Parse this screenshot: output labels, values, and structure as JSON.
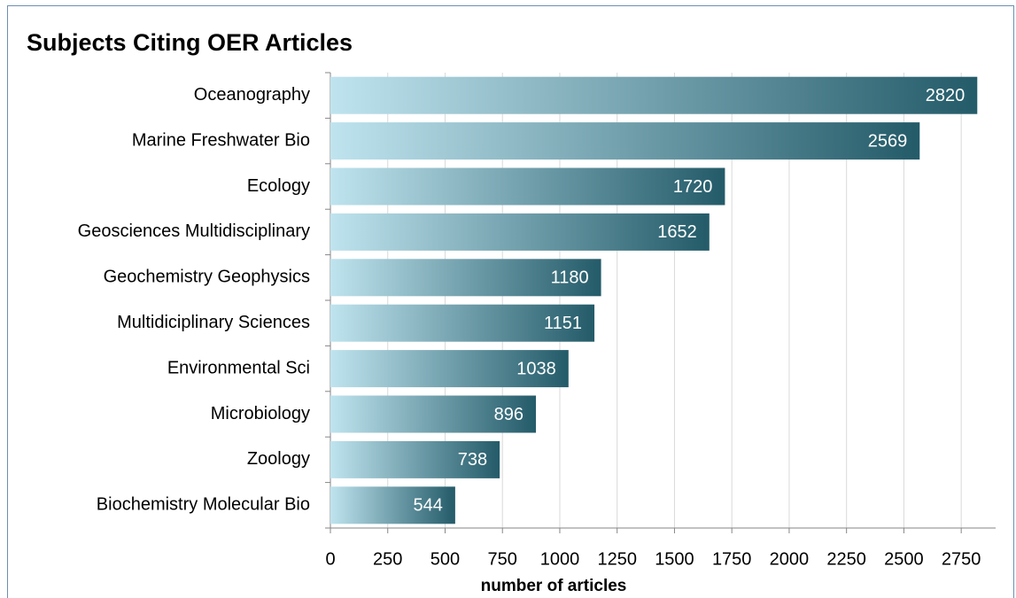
{
  "chart_data": {
    "type": "bar",
    "orientation": "horizontal",
    "title": "Subjects Citing OER Articles",
    "x_label": "number of articles",
    "categories": [
      "Oceanography",
      "Marine Freshwater Bio",
      "Ecology",
      "Geosciences Multidisciplinary",
      "Geochemistry Geophysics",
      "Multidiciplinary Sciences",
      "Environmental Sci",
      "Microbiology",
      "Zoology",
      "Biochemistry Molecular Bio"
    ],
    "values": [
      2820,
      2569,
      1720,
      1652,
      1180,
      1151,
      1038,
      896,
      738,
      544
    ],
    "color": "#245b69",
    "xlim": [
      0,
      2900
    ],
    "xticks": [
      0,
      250,
      500,
      750,
      1000,
      1250,
      1500,
      1750,
      2000,
      2250,
      2500,
      2750
    ],
    "grid": true
  }
}
